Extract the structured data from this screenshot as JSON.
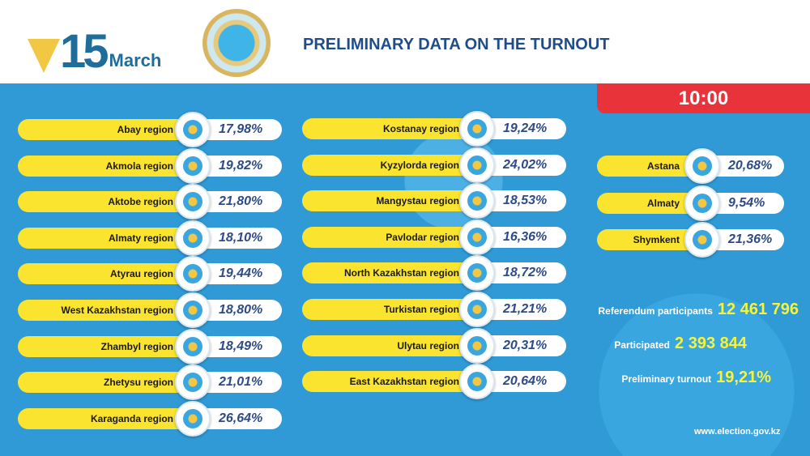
{
  "header": {
    "logo_number": "15",
    "logo_month": "March",
    "title": "PRELIMINARY DATA ON THE TURNOUT"
  },
  "time": "10:00",
  "left_regions": [
    {
      "name": "Abay  region",
      "value": "17,98%",
      "emblem": "Abai"
    },
    {
      "name": "Akmola  region",
      "value": "19,82%",
      "emblem": "AQMOLA"
    },
    {
      "name": "Aktobe region",
      "value": "21,80%",
      "emblem": "Aqtobe"
    },
    {
      "name": "Almaty  region",
      "value": "18,10%",
      "emblem": ""
    },
    {
      "name": "Atyrau  region",
      "value": "19,44%",
      "emblem": "ATYRAU"
    },
    {
      "name": "West Kazakhstan region",
      "value": "18,80%",
      "emblem": ""
    },
    {
      "name": "Zhambyl  region",
      "value": "18,49%",
      "emblem": ""
    },
    {
      "name": "Zhetysu  region",
      "value": "21,01%",
      "emblem": ""
    },
    {
      "name": "Karaganda region",
      "value": "26,64%",
      "emblem": ""
    }
  ],
  "middle_regions": [
    {
      "name": "Kostanay region",
      "value": "19,24%",
      "emblem": ""
    },
    {
      "name": "Kyzylorda region",
      "value": "24,02%",
      "emblem": ""
    },
    {
      "name": "Mangystau region",
      "value": "18,53%",
      "emblem": ""
    },
    {
      "name": "Pavlodar region",
      "value": "16,36%",
      "emblem": ""
    },
    {
      "name": "North Kazakhstan region",
      "value": "18,72%",
      "emblem": ""
    },
    {
      "name": "Turkistan region",
      "value": "21,21%",
      "emblem": ""
    },
    {
      "name": "Ulytau region",
      "value": "20,31%",
      "emblem": "Ulytau"
    },
    {
      "name": "East Kazakhstan region",
      "value": "20,64%",
      "emblem": ""
    }
  ],
  "cities": [
    {
      "name": "Astana",
      "value": "20,68%",
      "emblem": ""
    },
    {
      "name": "Almaty",
      "value": "9,54%",
      "emblem": ""
    },
    {
      "name": "Shymkent",
      "value": "21,36%",
      "emblem": "Shymkent"
    }
  ],
  "stats": [
    {
      "label": "Referendum participants",
      "value": "12 461 796"
    },
    {
      "label": "Participated",
      "value": "2 393 844"
    },
    {
      "label": "Preliminary turnout",
      "value": "19,21%"
    }
  ],
  "website": "www.election.gov.kz",
  "colors": {
    "background": "#2f9ad6",
    "pill": "#fbe430",
    "time_box": "#e8333a",
    "stat_value": "#f7f23a",
    "percent": "#2d4b86"
  }
}
